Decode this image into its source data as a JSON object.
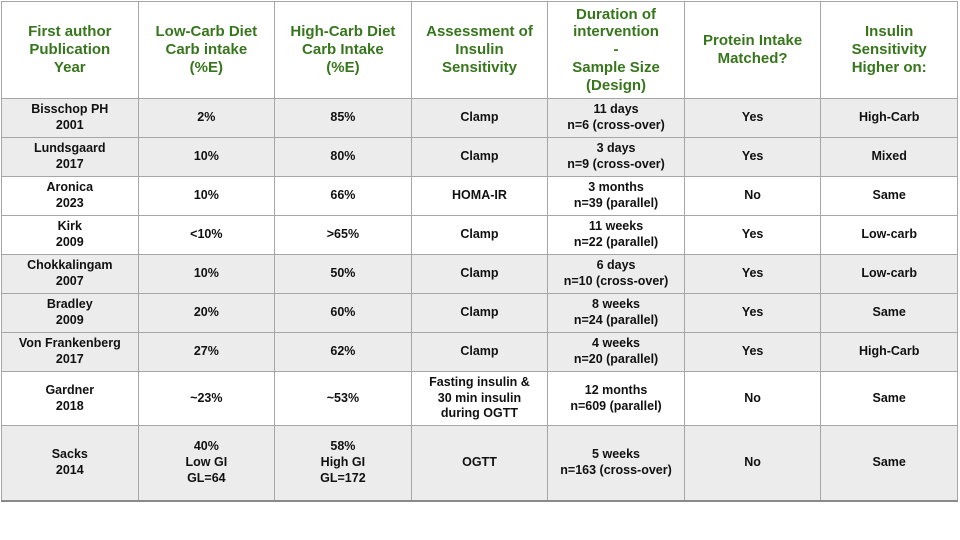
{
  "colors": {
    "header_text": "#38761d",
    "shaded_row_bg": "#ececec",
    "border": "#a6a6a6",
    "body_text": "#111111"
  },
  "table": {
    "columns": [
      {
        "id": "author",
        "label": "First author\nPublication\nYear"
      },
      {
        "id": "low_carb",
        "label": "Low-Carb Diet\nCarb intake\n(%E)"
      },
      {
        "id": "high_carb",
        "label": "High-Carb Diet\nCarb Intake\n(%E)"
      },
      {
        "id": "assessment",
        "label": "Assessment of\nInsulin\nSensitivity"
      },
      {
        "id": "duration",
        "label": "Duration of\nintervention\n-\nSample Size\n(Design)"
      },
      {
        "id": "protein",
        "label": "Protein Intake\nMatched?"
      },
      {
        "id": "higher_on",
        "label": "Insulin\nSensitivity\nHigher on:"
      }
    ],
    "rows": [
      {
        "author": "Bisschop PH\n2001",
        "low_carb": "2%",
        "high_carb": "85%",
        "assessment": "Clamp",
        "duration": "11 days\nn=6 (cross-over)",
        "protein": "Yes",
        "higher_on": "High-Carb"
      },
      {
        "author": "Lundsgaard\n2017",
        "low_carb": "10%",
        "high_carb": "80%",
        "assessment": "Clamp",
        "duration": "3 days\nn=9 (cross-over)",
        "protein": "Yes",
        "higher_on": "Mixed"
      },
      {
        "author": "Aronica\n2023",
        "low_carb": "10%",
        "high_carb": "66%",
        "assessment": "HOMA-IR",
        "duration": "3 months\nn=39 (parallel)",
        "protein": "No",
        "higher_on": "Same"
      },
      {
        "author": "Kirk\n2009",
        "low_carb": "<10%",
        "high_carb": ">65%",
        "assessment": "Clamp",
        "duration": "11 weeks\nn=22 (parallel)",
        "protein": "Yes",
        "higher_on": "Low-carb"
      },
      {
        "author": "Chokkalingam\n2007",
        "low_carb": "10%",
        "high_carb": "50%",
        "assessment": "Clamp",
        "duration": "6 days\nn=10 (cross-over)",
        "protein": "Yes",
        "higher_on": "Low-carb"
      },
      {
        "author": "Bradley\n2009",
        "low_carb": "20%",
        "high_carb": "60%",
        "assessment": "Clamp",
        "duration": "8 weeks\nn=24 (parallel)",
        "protein": "Yes",
        "higher_on": "Same"
      },
      {
        "author": "Von Frankenberg\n2017",
        "low_carb": "27%",
        "high_carb": "62%",
        "assessment": "Clamp",
        "duration": "4 weeks\nn=20 (parallel)",
        "protein": "Yes",
        "higher_on": "High-Carb"
      },
      {
        "author": "Gardner\n2018",
        "low_carb": "~23%",
        "high_carb": "~53%",
        "assessment": "Fasting insulin &\n30 min insulin\nduring OGTT",
        "duration": "12 months\nn=609 (parallel)",
        "protein": "No",
        "higher_on": "Same"
      },
      {
        "author": "Sacks\n2014",
        "low_carb": "40%\nLow GI\nGL=64",
        "high_carb": "58%\nHigh GI\nGL=172",
        "assessment": "OGTT",
        "duration": "5 weeks\nn=163 (cross-over)",
        "protein": "No",
        "higher_on": "Same"
      }
    ]
  }
}
